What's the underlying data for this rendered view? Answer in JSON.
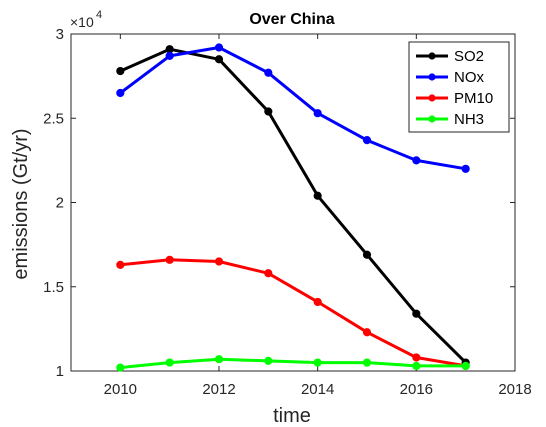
{
  "chart_data": {
    "type": "line",
    "title": "Over China",
    "xlabel": "time",
    "ylabel": "emissions (Gt/yr)",
    "y_multiplier_label": "×10",
    "y_multiplier_exp": "4",
    "xlim": [
      2009,
      2018
    ],
    "ylim": [
      1,
      3
    ],
    "x_ticks": [
      2010,
      2012,
      2014,
      2016,
      2018
    ],
    "x_tick_labels": [
      "2010",
      "2012",
      "2014",
      "2016",
      "2018"
    ],
    "y_ticks": [
      1,
      1.5,
      2,
      2.5,
      3
    ],
    "y_tick_labels": [
      "1",
      "1.5",
      "2",
      "2.5",
      "3"
    ],
    "x": [
      2010,
      2011,
      2012,
      2013,
      2014,
      2015,
      2016,
      2017
    ],
    "legend_position": "top-right",
    "grid": false,
    "series": [
      {
        "name": "SO2",
        "color": "#000000",
        "values": [
          2.78,
          2.91,
          2.85,
          2.54,
          2.04,
          1.69,
          1.34,
          1.05
        ]
      },
      {
        "name": "NOx",
        "color": "#0000ff",
        "values": [
          2.65,
          2.87,
          2.92,
          2.77,
          2.53,
          2.37,
          2.25,
          2.2
        ]
      },
      {
        "name": "PM10",
        "color": "#ff0000",
        "values": [
          1.63,
          1.66,
          1.65,
          1.58,
          1.41,
          1.23,
          1.08,
          1.03
        ]
      },
      {
        "name": "NH3",
        "color": "#00ff00",
        "values": [
          1.02,
          1.05,
          1.07,
          1.06,
          1.05,
          1.05,
          1.03,
          1.03
        ]
      }
    ]
  }
}
